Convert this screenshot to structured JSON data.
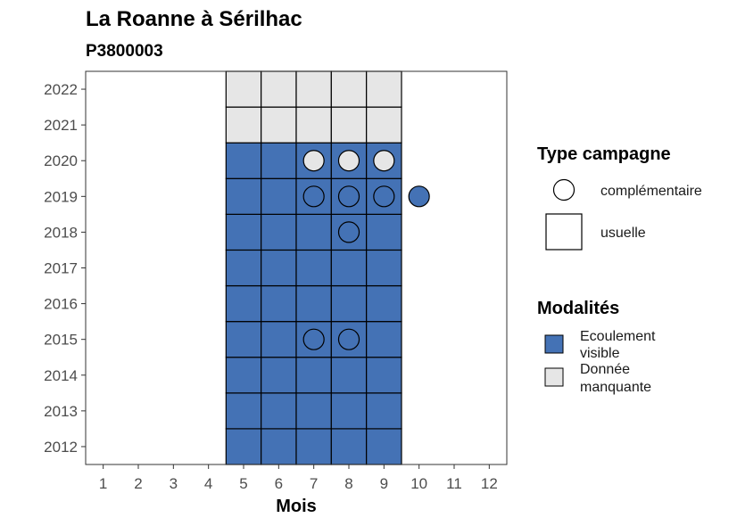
{
  "chart_data": {
    "type": "heatmap",
    "title": "La Roanne à Sérilhac",
    "subtitle": "P3800003",
    "xlabel": "Mois",
    "ylabel": "",
    "x_ticks": [
      1,
      2,
      3,
      4,
      5,
      6,
      7,
      8,
      9,
      10,
      11,
      12
    ],
    "y_ticks": [
      2012,
      2013,
      2014,
      2015,
      2016,
      2017,
      2018,
      2019,
      2020,
      2021,
      2022
    ],
    "xlim": [
      0.5,
      12.5
    ],
    "ylim": [
      2011.5,
      2022.5
    ],
    "colors": {
      "Ecoulement visible": "#4472b5",
      "Donnée manquante": "#e6e6e6",
      "outline": "#000000"
    },
    "usuelle": [
      {
        "year": 2012,
        "months": [
          5,
          6,
          7,
          8,
          9
        ],
        "modalite": "Ecoulement visible"
      },
      {
        "year": 2013,
        "months": [
          5,
          6,
          7,
          8,
          9
        ],
        "modalite": "Ecoulement visible"
      },
      {
        "year": 2014,
        "months": [
          5,
          6,
          7,
          8,
          9
        ],
        "modalite": "Ecoulement visible"
      },
      {
        "year": 2015,
        "months": [
          5,
          6,
          7,
          8,
          9
        ],
        "modalite": "Ecoulement visible"
      },
      {
        "year": 2016,
        "months": [
          5,
          6,
          7,
          8,
          9
        ],
        "modalite": "Ecoulement visible"
      },
      {
        "year": 2017,
        "months": [
          5,
          6,
          7,
          8,
          9
        ],
        "modalite": "Ecoulement visible"
      },
      {
        "year": 2018,
        "months": [
          5,
          6,
          7,
          8,
          9
        ],
        "modalite": "Ecoulement visible"
      },
      {
        "year": 2019,
        "months": [
          5,
          6,
          7,
          8,
          9
        ],
        "modalite": "Ecoulement visible"
      },
      {
        "year": 2020,
        "months": [
          5,
          6,
          7,
          8,
          9
        ],
        "modalite": "Ecoulement visible"
      },
      {
        "year": 2021,
        "months": [
          5,
          6,
          7,
          8,
          9
        ],
        "modalite": "Donnée manquante"
      },
      {
        "year": 2022,
        "months": [
          5,
          6,
          7,
          8,
          9
        ],
        "modalite": "Donnée manquante"
      }
    ],
    "complementaire": [
      {
        "year": 2015,
        "month": 7,
        "modalite": "Ecoulement visible"
      },
      {
        "year": 2015,
        "month": 8,
        "modalite": "Ecoulement visible"
      },
      {
        "year": 2018,
        "month": 8,
        "modalite": "Ecoulement visible"
      },
      {
        "year": 2019,
        "month": 7,
        "modalite": "Ecoulement visible"
      },
      {
        "year": 2019,
        "month": 8,
        "modalite": "Ecoulement visible"
      },
      {
        "year": 2019,
        "month": 9,
        "modalite": "Ecoulement visible"
      },
      {
        "year": 2019,
        "month": 10,
        "modalite": "Ecoulement visible"
      },
      {
        "year": 2020,
        "month": 7,
        "modalite": "Donnée manquante"
      },
      {
        "year": 2020,
        "month": 8,
        "modalite": "Donnée manquante"
      },
      {
        "year": 2020,
        "month": 9,
        "modalite": "Donnée manquante"
      }
    ],
    "legend": {
      "type_campagne": {
        "title": "Type campagne",
        "items": [
          "complémentaire",
          "usuelle"
        ]
      },
      "modalites": {
        "title": "Modalités",
        "items": [
          {
            "name": "Ecoulement visible",
            "lines": [
              "Ecoulement",
              "visible"
            ]
          },
          {
            "name": "Donnée manquante",
            "lines": [
              "Donnée",
              "manquante"
            ]
          }
        ]
      }
    }
  }
}
